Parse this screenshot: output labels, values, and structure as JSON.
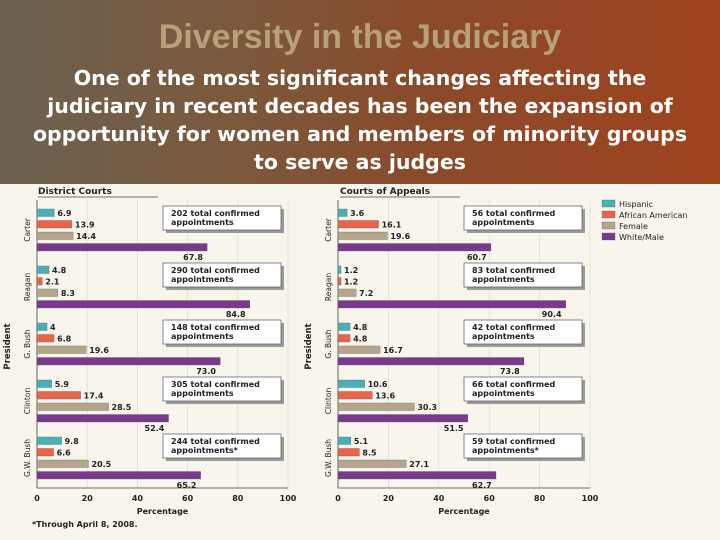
{
  "slide": {
    "title": "Diversity in the Judiciary",
    "subtitle": "One of the most significant changes affecting the judiciary in recent decades has been the expansion of opportunity for women and members of minority groups to serve as judges"
  },
  "colors": {
    "hispanic": "#4ab0b8",
    "african_american": "#e8654a",
    "female": "#b5a58c",
    "white_male": "#7a3a8c"
  },
  "chart_data": [
    {
      "type": "bar",
      "orientation": "horizontal",
      "title": "District Courts",
      "xlabel": "Percentage",
      "ylabel": "President",
      "xlim": [
        0,
        100
      ],
      "xticks": [
        0,
        20,
        40,
        60,
        80,
        100
      ],
      "categories": [
        "Carter",
        "Reagan",
        "G. Bush",
        "Clinton",
        "G.W. Bush"
      ],
      "series": [
        {
          "name": "Hispanic",
          "values": [
            6.9,
            4.8,
            4,
            5.9,
            9.8
          ]
        },
        {
          "name": "African American",
          "values": [
            13.9,
            2.1,
            6.8,
            17.4,
            6.6
          ]
        },
        {
          "name": "Female",
          "values": [
            14.4,
            8.3,
            19.6,
            28.5,
            20.5
          ]
        },
        {
          "name": "White/Male",
          "values": [
            67.8,
            84.8,
            73.0,
            52.4,
            65.2
          ]
        }
      ],
      "value_labels": [
        [
          "6.9",
          "13.9",
          "14.4",
          "67.8"
        ],
        [
          "4.8",
          "2.1",
          "8.3",
          "84.8"
        ],
        [
          "4",
          "6.8",
          "19.6",
          "73.0"
        ],
        [
          "5.9",
          "17.4",
          "28.5",
          "52.4"
        ],
        [
          "9.8",
          "6.6",
          "20.5",
          "65.2"
        ]
      ],
      "annotations": [
        [
          "202 total confirmed",
          "appointments"
        ],
        [
          "290 total confirmed",
          "appointments"
        ],
        [
          "148 total confirmed",
          "appointments"
        ],
        [
          "305 total confirmed",
          "appointments"
        ],
        [
          "244 total confirmed",
          "appointments*"
        ]
      ],
      "footnote": "*Through April 8, 2008."
    },
    {
      "type": "bar",
      "orientation": "horizontal",
      "title": "Courts of Appeals",
      "xlabel": "Percentage",
      "ylabel": "President",
      "xlim": [
        0,
        100
      ],
      "xticks": [
        0,
        20,
        40,
        60,
        80,
        100
      ],
      "categories": [
        "Carter",
        "Reagan",
        "G. Bush",
        "Clinton",
        "G.W. Bush"
      ],
      "series": [
        {
          "name": "Hispanic",
          "values": [
            3.6,
            1.2,
            4.8,
            10.6,
            5.1
          ]
        },
        {
          "name": "African American",
          "values": [
            16.1,
            1.2,
            4.8,
            13.6,
            8.5
          ]
        },
        {
          "name": "Female",
          "values": [
            19.6,
            7.2,
            16.7,
            30.3,
            27.1
          ]
        },
        {
          "name": "White/Male",
          "values": [
            60.7,
            90.4,
            73.8,
            51.5,
            62.7
          ]
        }
      ],
      "value_labels": [
        [
          "3.6",
          "16.1",
          "19.6",
          "60.7"
        ],
        [
          "1.2",
          "1.2",
          "7.2",
          "90.4"
        ],
        [
          "4.8",
          "4.8",
          "16.7",
          "73.8"
        ],
        [
          "10.6",
          "13.6",
          "30.3",
          "51.5"
        ],
        [
          "5.1",
          "8.5",
          "27.1",
          "62.7"
        ]
      ],
      "annotations": [
        [
          "56 total confirmed",
          "appointments"
        ],
        [
          "83 total confirmed",
          "appointments"
        ],
        [
          "42 total confirmed",
          "appointments"
        ],
        [
          "66 total confirmed",
          "appointments"
        ],
        [
          "59 total confirmed",
          "appointments*"
        ]
      ]
    }
  ],
  "legend": [
    "Hispanic",
    "African American",
    "Female",
    "White/Male"
  ]
}
